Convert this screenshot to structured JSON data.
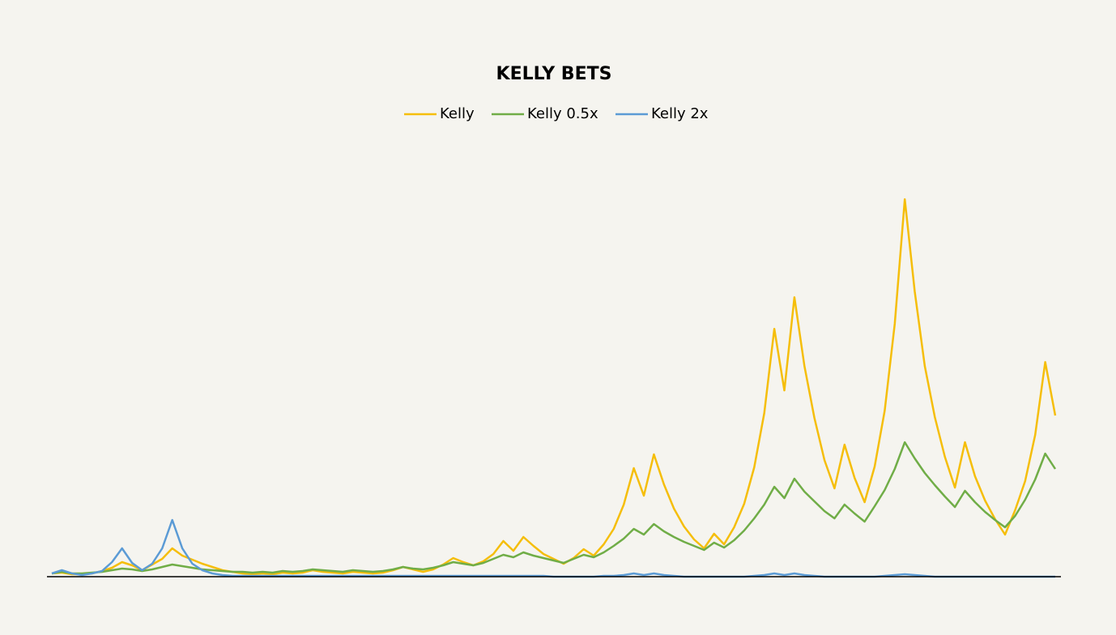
{
  "chart_data": {
    "type": "line",
    "title": "KELLY BETS",
    "categories": [
      null,
      null,
      null,
      null,
      null,
      null,
      null,
      null,
      null,
      null,
      null,
      null,
      null,
      null,
      null,
      null,
      null,
      null,
      null,
      null,
      null,
      null,
      null,
      null,
      null,
      null,
      null,
      null,
      null,
      null,
      null,
      null,
      null,
      null,
      null,
      null,
      null,
      null,
      null,
      null,
      null,
      null,
      null,
      null,
      null,
      null,
      null,
      null,
      null,
      null,
      null,
      null,
      null,
      null,
      null,
      null,
      null,
      null,
      null,
      null,
      null,
      null,
      null,
      null,
      null,
      null,
      null,
      null,
      null,
      null,
      null,
      null,
      null,
      null,
      null,
      null,
      null,
      null,
      null,
      null,
      null,
      null,
      null,
      null,
      null,
      null,
      null,
      null,
      null,
      null,
      null,
      null,
      null,
      null,
      null,
      null,
      null,
      null,
      null,
      null,
      null
    ],
    "ylim": [
      0,
      500
    ],
    "grid": false,
    "legend": "top",
    "series": [
      {
        "name": "Kelly",
        "color": "#f5be0b",
        "values": [
          4,
          5,
          3,
          3,
          4,
          7,
          11,
          18,
          14,
          8,
          15,
          22,
          35,
          26,
          21,
          16,
          12,
          8,
          6,
          4,
          3,
          4,
          3,
          5,
          4,
          5,
          8,
          6,
          5,
          4,
          6,
          5,
          4,
          5,
          8,
          12,
          9,
          6,
          9,
          15,
          23,
          18,
          14,
          19,
          28,
          44,
          32,
          49,
          38,
          28,
          22,
          16,
          23,
          34,
          26,
          40,
          59,
          89,
          134,
          100,
          151,
          114,
          84,
          62,
          46,
          35,
          53,
          40,
          61,
          90,
          135,
          202,
          306,
          230,
          345,
          260,
          196,
          144,
          109,
          163,
          122,
          92,
          136,
          205,
          312,
          466,
          352,
          260,
          197,
          148,
          110,
          166,
          124,
          94,
          71,
          52,
          82,
          118,
          175,
          265,
          199
        ]
      },
      {
        "name": "Kelly 0.5x",
        "color": "#70ad47",
        "values": [
          4,
          6,
          4,
          4,
          5,
          6,
          8,
          10,
          9,
          7,
          9,
          12,
          15,
          13,
          11,
          9,
          8,
          7,
          6,
          6,
          5,
          6,
          5,
          7,
          6,
          7,
          9,
          8,
          7,
          6,
          8,
          7,
          6,
          7,
          9,
          12,
          10,
          9,
          11,
          14,
          18,
          16,
          14,
          17,
          22,
          27,
          24,
          30,
          26,
          23,
          20,
          17,
          22,
          27,
          24,
          30,
          38,
          47,
          59,
          52,
          65,
          56,
          49,
          43,
          38,
          33,
          42,
          36,
          45,
          57,
          72,
          89,
          111,
          97,
          121,
          105,
          93,
          81,
          72,
          89,
          78,
          68,
          87,
          107,
          133,
          166,
          146,
          128,
          113,
          99,
          86,
          106,
          92,
          80,
          70,
          61,
          75,
          95,
          120,
          152,
          133
        ]
      },
      {
        "name": "Kelly 2x",
        "color": "#5b9bd5",
        "values": [
          4,
          8,
          4,
          2,
          4,
          7,
          18,
          35,
          17,
          8,
          16,
          35,
          70,
          35,
          16,
          8,
          4,
          2,
          1,
          1,
          1,
          1,
          1,
          1,
          1,
          1,
          1,
          1,
          1,
          1,
          1,
          1,
          1,
          1,
          1,
          1,
          1,
          1,
          1,
          1,
          1,
          1,
          1,
          1,
          1,
          1,
          1,
          1,
          1,
          1,
          0,
          0,
          0,
          0,
          0,
          1,
          1,
          2,
          4,
          2,
          4,
          2,
          1,
          0,
          0,
          0,
          0,
          0,
          0,
          0,
          1,
          2,
          4,
          2,
          4,
          2,
          1,
          0,
          0,
          0,
          0,
          0,
          0,
          1,
          2,
          3,
          2,
          1,
          0,
          0,
          0,
          0,
          0,
          0,
          0,
          0,
          0,
          0,
          0,
          0,
          0
        ]
      }
    ]
  }
}
